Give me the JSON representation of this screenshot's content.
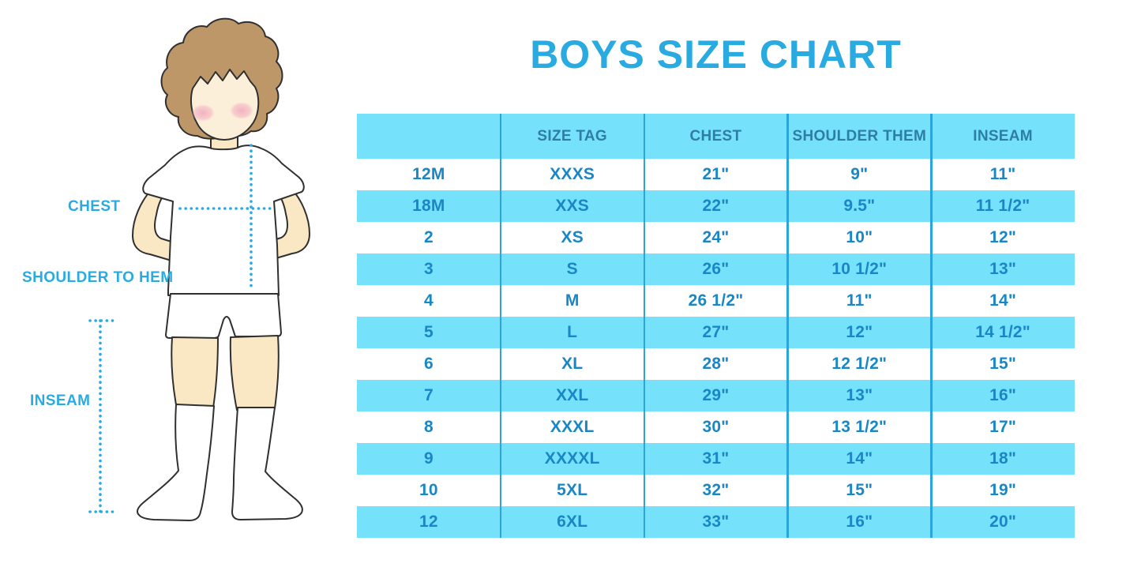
{
  "title": "BOYS SIZE CHART",
  "diagram": {
    "chest_label": "CHEST",
    "shoulder_to_hem_label": "SHOULDER TO HEM",
    "inseam_label": "INSEAM"
  },
  "chart_data": {
    "type": "table",
    "title": "BOYS SIZE CHART",
    "columns": [
      "",
      "SIZE TAG",
      "CHEST",
      "SHOULDER THEM",
      "INSEAM"
    ],
    "rows": [
      [
        "12M",
        "XXXS",
        "21\"",
        "9\"",
        "11\""
      ],
      [
        "18M",
        "XXS",
        "22\"",
        "9.5\"",
        "11 1/2\""
      ],
      [
        "2",
        "XS",
        "24\"",
        "10\"",
        "12\""
      ],
      [
        "3",
        "S",
        "26\"",
        "10 1/2\"",
        "13\""
      ],
      [
        "4",
        "M",
        "26 1/2\"",
        "11\"",
        "14\""
      ],
      [
        "5",
        "L",
        "27\"",
        "12\"",
        "14 1/2\""
      ],
      [
        "6",
        "XL",
        "28\"",
        "12 1/2\"",
        "15\""
      ],
      [
        "7",
        "XXL",
        "29\"",
        "13\"",
        "16\""
      ],
      [
        "8",
        "XXXL",
        "30\"",
        "13 1/2\"",
        "17\""
      ],
      [
        "9",
        "XXXXL",
        "31\"",
        "14\"",
        "18\""
      ],
      [
        "10",
        "5XL",
        "32\"",
        "15\"",
        "19\""
      ],
      [
        "12",
        "6XL",
        "33\"",
        "16\"",
        "20\""
      ]
    ],
    "row_striping": "alternating white/light-blue starting white below blue header",
    "legend_position": "none",
    "grid": "vertical column dividers only"
  },
  "colors": {
    "accent_blue": "#29ABE2",
    "row_light_blue": "#76E1FB",
    "cell_text_blue": "#1987C5",
    "header_text_blue": "#2E7EA4",
    "column_divider_blue": "#2AA6DC",
    "skin": "#FAE7C3",
    "face_skin": "#FCEFD9",
    "hair_brown": "#BE9769",
    "blush_pink": "#F2AFC0",
    "outline": "#303030"
  }
}
